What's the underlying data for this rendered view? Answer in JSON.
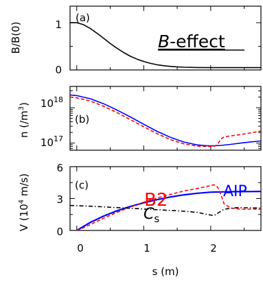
{
  "chart_data": [
    {
      "type": "line",
      "panel_label": "(a)",
      "annotation": "B",
      "annotation_suffix": "-effect",
      "ylabel": "B/B(0)",
      "xlim": [
        -0.1,
        2.75
      ],
      "ylim": [
        0,
        1.35
      ],
      "x_ticks": [
        0,
        1,
        2
      ],
      "y_ticks": [
        0,
        1
      ],
      "y_tick_labels": [
        "0",
        "1"
      ],
      "series": [
        {
          "color": "#000000",
          "style": "solid",
          "x": [
            -0.1,
            0.0,
            0.1,
            0.2,
            0.3,
            0.4,
            0.5,
            0.6,
            0.7,
            0.8,
            0.9,
            1.0,
            1.1,
            1.2,
            1.3,
            1.4,
            1.5,
            1.6,
            1.8,
            2.0,
            2.2,
            2.4,
            2.6,
            2.75
          ],
          "y": [
            1.0,
            1.0,
            0.96,
            0.88,
            0.78,
            0.67,
            0.56,
            0.46,
            0.37,
            0.29,
            0.23,
            0.18,
            0.14,
            0.11,
            0.09,
            0.075,
            0.065,
            0.058,
            0.052,
            0.05,
            0.05,
            0.05,
            0.05,
            0.05
          ]
        }
      ]
    },
    {
      "type": "line",
      "panel_label": "(b)",
      "ylabel": "n (/m³)",
      "ylabel_base": "n (/m",
      "ylabel_exp": "3",
      "ylabel_end": ")",
      "yscale": "log",
      "xlim": [
        -0.1,
        2.75
      ],
      "ylim": [
        6.3e+16,
        4e+18
      ],
      "x_ticks": [
        0,
        1,
        2
      ],
      "y_ticks": [
        1e+17,
        1e+18
      ],
      "y_tick_labels": [
        {
          "base": "10",
          "exp": "17"
        },
        {
          "base": "10",
          "exp": "18"
        }
      ],
      "series": [
        {
          "name": "AIP",
          "color": "#0000ff",
          "style": "solid",
          "x": [
            -0.1,
            0.0,
            0.2,
            0.4,
            0.6,
            0.8,
            1.0,
            1.2,
            1.4,
            1.6,
            1.8,
            1.95,
            2.05,
            2.15,
            2.3,
            2.45,
            2.6,
            2.75
          ],
          "y": [
            2.3e+18,
            2.2e+18,
            1.8e+18,
            1.3e+18,
            8.6e+17,
            5.5e+17,
            3.4e+17,
            2.15e+17,
            1.45e+17,
            1.07e+17,
            8.9e+16,
            8.4e+16,
            8.4e+16,
            8.6e+16,
            9.2e+16,
            1e+17,
            1.08e+17,
            1.15e+17
          ]
        },
        {
          "name": "B2",
          "color": "#ff0000",
          "style": "dashed",
          "x": [
            -0.1,
            0.0,
            0.2,
            0.4,
            0.6,
            0.8,
            1.0,
            1.2,
            1.4,
            1.6,
            1.8,
            1.95,
            2.05,
            2.1,
            2.15,
            2.2,
            2.3,
            2.45,
            2.6,
            2.75
          ],
          "y": [
            2e+18,
            1.9e+18,
            1.55e+18,
            1.1e+18,
            7.3e+17,
            4.6e+17,
            2.9e+17,
            1.85e+17,
            1.25e+17,
            9.5e+16,
            8.2e+16,
            8e+16,
            8.1e+16,
            9e+16,
            1.3e+17,
            1.5e+17,
            1.6e+17,
            1.75e+17,
            1.95e+17,
            2.2e+17
          ]
        }
      ]
    },
    {
      "type": "line",
      "panel_label": "(c)",
      "ylabel": "V (10⁴ m/s)",
      "ylabel_base": "V (10",
      "ylabel_exp": "4",
      "ylabel_end": " m/s)",
      "xlabel": "s (m)",
      "xlim": [
        -0.1,
        2.75
      ],
      "ylim": [
        0,
        6
      ],
      "x_ticks": [
        0,
        1,
        2
      ],
      "x_tick_labels": [
        "0",
        "1",
        "2"
      ],
      "y_ticks": [
        0,
        3,
        6
      ],
      "y_tick_labels": [
        "0",
        "3",
        "6"
      ],
      "annotations": [
        {
          "text": "B2",
          "color": "#ff0000"
        },
        {
          "text": "AIP",
          "color": "#0000ff"
        },
        {
          "text": "C",
          "subscript": "s",
          "color": "#000000"
        }
      ],
      "series": [
        {
          "name": "AIP",
          "color": "#0000ff",
          "style": "solid",
          "x": [
            0.0,
            0.2,
            0.4,
            0.6,
            0.8,
            1.0,
            1.2,
            1.4,
            1.6,
            1.8,
            2.0,
            2.2,
            2.4,
            2.6,
            2.75
          ],
          "y": [
            0.0,
            0.75,
            1.35,
            1.85,
            2.25,
            2.6,
            2.9,
            3.15,
            3.35,
            3.5,
            3.6,
            3.63,
            3.65,
            3.66,
            3.67
          ]
        },
        {
          "name": "B2",
          "color": "#ff0000",
          "style": "dashed",
          "x": [
            0.0,
            0.1,
            0.2,
            0.4,
            0.6,
            0.8,
            1.0,
            1.2,
            1.4,
            1.6,
            1.8,
            1.95,
            2.05,
            2.1,
            2.15,
            2.2,
            2.3,
            2.45,
            2.6,
            2.75
          ],
          "y": [
            0.0,
            0.25,
            0.55,
            1.15,
            1.7,
            2.2,
            2.65,
            3.05,
            3.4,
            3.7,
            3.95,
            4.15,
            4.3,
            4.1,
            3.4,
            2.5,
            2.1,
            2.0,
            2.0,
            2.0
          ]
        },
        {
          "name": "C_s",
          "color": "#000000",
          "style": "dashdot",
          "x": [
            -0.1,
            0.0,
            0.3,
            0.6,
            0.9,
            1.2,
            1.5,
            1.8,
            1.95,
            2.05,
            2.1,
            2.2,
            2.4,
            2.6,
            2.75
          ],
          "y": [
            2.35,
            2.33,
            2.25,
            2.15,
            2.05,
            1.95,
            1.85,
            1.7,
            1.5,
            1.4,
            1.6,
            2.0,
            2.15,
            2.12,
            2.1
          ]
        }
      ]
    }
  ]
}
